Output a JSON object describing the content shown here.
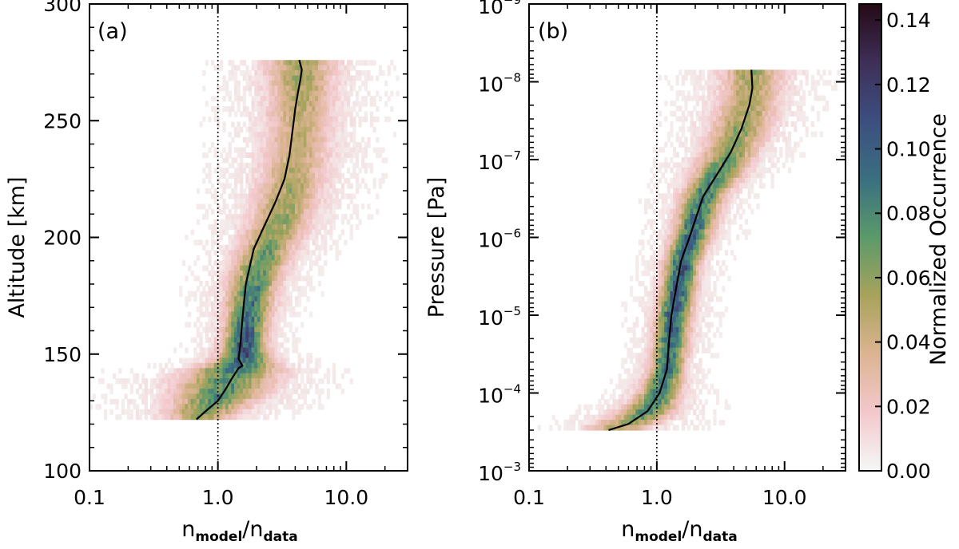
{
  "colors": {
    "background": "#ffffff",
    "axis": "#000000",
    "median_line": "#000000",
    "reference_line": "#000000",
    "colormap": [
      "#f4f8f6",
      "#f3c8cc",
      "#dcb492",
      "#a8a35c",
      "#5b9a6a",
      "#3a6f80",
      "#3c4f80",
      "#3f2f58",
      "#250a16"
    ]
  },
  "chart_data": [
    {
      "type": "heatmap",
      "panel_label": "(a)",
      "xscale": "log",
      "xlim": [
        0.1,
        30
      ],
      "xticks": [
        0.1,
        1.0,
        10.0
      ],
      "xtick_labels": [
        "0.1",
        "1.0",
        "10.0"
      ],
      "xlabel": {
        "base1": "n",
        "sub1": "model",
        "slash": "/",
        "base2": "n",
        "sub2": "data"
      },
      "ylabel": "Altitude [km]",
      "ylim": [
        100,
        300
      ],
      "yticks": [
        100,
        150,
        200,
        250,
        300
      ],
      "ytick_labels": [
        "100",
        "150",
        "200",
        "250",
        "300"
      ],
      "reference_line_x": 1.0,
      "median": {
        "x": [
          0.68,
          0.82,
          1.0,
          1.15,
          1.3,
          1.45,
          1.55,
          1.45,
          1.5,
          1.55,
          1.65,
          1.9,
          2.3,
          2.8,
          3.3,
          3.6,
          3.8,
          4.0,
          4.2,
          4.4,
          4.5,
          4.3
        ],
        "y": [
          122,
          126,
          130,
          135,
          140,
          144,
          145,
          148,
          155,
          165,
          180,
          195,
          205,
          215,
          225,
          235,
          245,
          255,
          262,
          268,
          272,
          276
        ]
      },
      "density_core": {
        "y_range": [
          120,
          276
        ],
        "x_peak": [
          0.7,
          0.82,
          1.0,
          1.15,
          1.35,
          1.6,
          1.6,
          1.7,
          1.8,
          2.0,
          2.4,
          2.9,
          3.4,
          3.8,
          4.1,
          4.3,
          4.4,
          4.4
        ],
        "y_at": [
          122,
          127,
          132,
          138,
          143,
          148,
          155,
          165,
          175,
          185,
          195,
          205,
          215,
          225,
          235,
          245,
          260,
          276
        ],
        "peak_level": [
          0.05,
          0.06,
          0.07,
          0.07,
          0.08,
          0.1,
          0.1,
          0.09,
          0.08,
          0.07,
          0.06,
          0.055,
          0.05,
          0.045,
          0.04,
          0.04,
          0.045,
          0.05
        ],
        "width_decades": [
          0.15,
          0.18,
          0.2,
          0.22,
          0.2,
          0.12,
          0.1,
          0.1,
          0.11,
          0.12,
          0.13,
          0.14,
          0.15,
          0.15,
          0.15,
          0.15,
          0.15,
          0.16
        ]
      }
    },
    {
      "type": "heatmap",
      "panel_label": "(b)",
      "xscale": "log",
      "xlim": [
        0.1,
        30
      ],
      "xticks": [
        0.1,
        1.0,
        10.0
      ],
      "xtick_labels": [
        "0.1",
        "1.0",
        "10.0"
      ],
      "xlabel": {
        "base1": "n",
        "sub1": "model",
        "slash": "/",
        "base2": "n",
        "sub2": "data"
      },
      "ylabel": "Pressure [Pa]",
      "yscale": "log",
      "yinverted": true,
      "ylim": [
        0.001,
        1e-09
      ],
      "yticks": [
        1e-09,
        1e-08,
        1e-07,
        1e-06,
        1e-05,
        0.0001,
        0.001
      ],
      "ytick_labels": [
        {
          "base": "10",
          "exp": "−9"
        },
        {
          "base": "10",
          "exp": "−8"
        },
        {
          "base": "10",
          "exp": "−7"
        },
        {
          "base": "10",
          "exp": "−6"
        },
        {
          "base": "10",
          "exp": "−5"
        },
        {
          "base": "10",
          "exp": "−4"
        },
        {
          "base": "10",
          "exp": "−3"
        }
      ],
      "reference_line_x": 1.0,
      "median": {
        "x": [
          0.42,
          0.6,
          0.85,
          1.05,
          1.2,
          1.25,
          1.3,
          1.4,
          1.55,
          1.8,
          2.3,
          3.0,
          3.8,
          4.6,
          5.3,
          5.6,
          5.5
        ],
        "y": [
          0.0003,
          0.00025,
          0.00017,
          0.0001,
          5e-05,
          2e-05,
          1e-05,
          5e-06,
          2e-06,
          1e-06,
          3e-07,
          1.5e-07,
          8e-08,
          4e-08,
          2e-08,
          1.2e-08,
          7e-09
        ]
      },
      "density_core": {
        "x_peak": [
          0.45,
          0.6,
          0.85,
          1.05,
          1.2,
          1.3,
          1.35,
          1.45,
          1.6,
          1.85,
          2.3,
          3.0,
          3.9,
          4.8,
          5.5,
          5.6
        ],
        "y_at": [
          0.0003,
          0.00025,
          0.00017,
          0.0001,
          5e-05,
          2e-05,
          1e-05,
          5e-06,
          2e-06,
          1e-06,
          3e-07,
          1.5e-07,
          7e-08,
          3e-08,
          1.2e-08,
          7e-09
        ],
        "peak_level": [
          0.04,
          0.05,
          0.07,
          0.08,
          0.09,
          0.09,
          0.1,
          0.1,
          0.1,
          0.09,
          0.08,
          0.07,
          0.06,
          0.05,
          0.045,
          0.05
        ],
        "width_decades": [
          0.15,
          0.15,
          0.13,
          0.1,
          0.08,
          0.08,
          0.08,
          0.08,
          0.08,
          0.09,
          0.1,
          0.12,
          0.13,
          0.14,
          0.14,
          0.15
        ]
      }
    }
  ],
  "colorbar": {
    "label": "Normalized Occurrence",
    "range": [
      0.0,
      0.145
    ],
    "ticks": [
      0.0,
      0.02,
      0.04,
      0.06,
      0.08,
      0.1,
      0.12,
      0.14
    ],
    "tick_labels": [
      "0.00",
      "0.02",
      "0.04",
      "0.06",
      "0.08",
      "0.10",
      "0.12",
      "0.14"
    ]
  }
}
